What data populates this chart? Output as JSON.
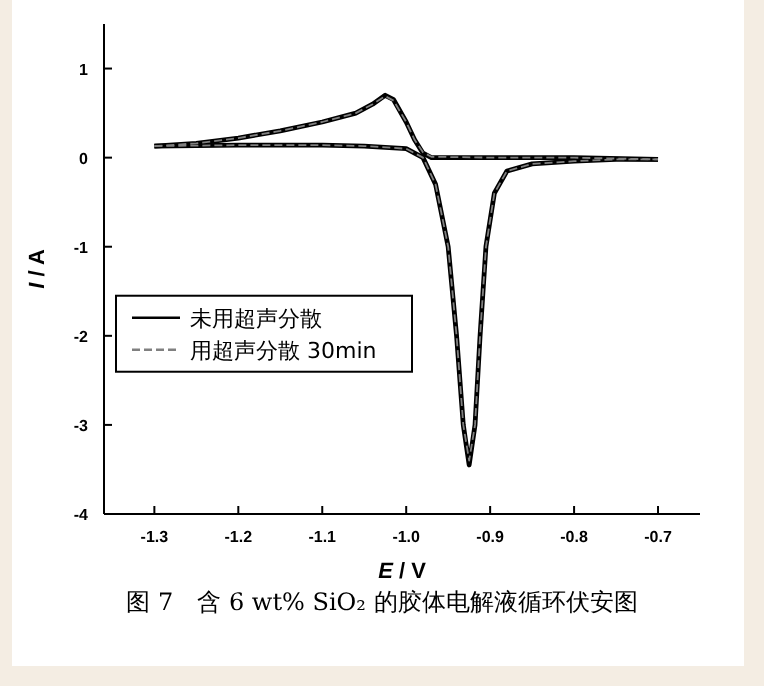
{
  "chart_data": {
    "type": "line",
    "xlabel": "E / V",
    "ylabel": "I / A",
    "xlim": [
      -1.36,
      -0.65
    ],
    "ylim": [
      -4,
      1.5
    ],
    "xticks": [
      -1.3,
      -1.2,
      -1.1,
      {
        "value": -1,
        "label": "-1.0"
      },
      -0.9,
      -0.8,
      -0.7
    ],
    "yticks": [
      -4,
      -3,
      -2,
      -1,
      0,
      1
    ],
    "legend": "bottom left",
    "grid": false,
    "series": [
      {
        "name": "未用超声分散",
        "color": "#000000",
        "line_style": "solid",
        "x": [
          -1.3,
          -1.25,
          -1.2,
          -1.15,
          -1.1,
          -1.06,
          -1.04,
          -1.025,
          -1.015,
          -1.0,
          -0.99,
          -0.98,
          -0.97,
          -0.9,
          -0.8,
          -0.7
        ],
        "values": [
          0.13,
          0.16,
          0.22,
          0.3,
          0.4,
          0.5,
          0.6,
          0.7,
          0.65,
          0.4,
          0.2,
          0.05,
          0.0,
          0.0,
          0.0,
          -0.02
        ]
      },
      {
        "color": "#000000",
        "line_style": "solid",
        "x": [
          -1.3,
          -1.2,
          -1.1,
          -1.05,
          -1.0,
          -0.98,
          -0.965,
          -0.95,
          -0.94,
          -0.932,
          -0.925,
          -0.918,
          -0.912,
          -0.905,
          -0.895,
          -0.88,
          -0.85,
          -0.8,
          -0.75,
          -0.7
        ],
        "values": [
          0.13,
          0.14,
          0.14,
          0.13,
          0.1,
          0.0,
          -0.3,
          -1.0,
          -2.0,
          -3.0,
          -3.45,
          -3.0,
          -2.0,
          -1.0,
          -0.4,
          -0.15,
          -0.07,
          -0.04,
          -0.02,
          -0.02
        ]
      },
      {
        "name": "用超声分散 30min",
        "color": "#808080",
        "line_style": "dashed",
        "x": [
          -1.3,
          -1.25,
          -1.2,
          -1.15,
          -1.1,
          -1.06,
          -1.04,
          -1.025,
          -1.015,
          -1.0,
          -0.99,
          -0.98,
          -0.97,
          -0.9,
          -0.8,
          -0.7
        ],
        "values": [
          0.13,
          0.16,
          0.22,
          0.3,
          0.4,
          0.5,
          0.6,
          0.69,
          0.64,
          0.4,
          0.2,
          0.06,
          0.01,
          0.0,
          0.0,
          -0.02
        ]
      },
      {
        "color": "#808080",
        "line_style": "dashed",
        "x": [
          -1.3,
          -1.2,
          -1.1,
          -1.05,
          -1.0,
          -0.98,
          -0.965,
          -0.95,
          -0.94,
          -0.932,
          -0.925,
          -0.918,
          -0.912,
          -0.905,
          -0.895,
          -0.88,
          -0.85,
          -0.8,
          -0.75,
          -0.7
        ],
        "values": [
          0.13,
          0.14,
          0.14,
          0.13,
          0.1,
          0.0,
          -0.3,
          -1.0,
          -2.0,
          -3.0,
          -3.4,
          -3.0,
          -2.0,
          -1.0,
          -0.4,
          -0.15,
          -0.07,
          -0.04,
          -0.02,
          -0.02
        ]
      }
    ],
    "annotations": [
      "图 7　含 6 wt% SiO₂ 的胶体电解液循环伏安图"
    ]
  }
}
